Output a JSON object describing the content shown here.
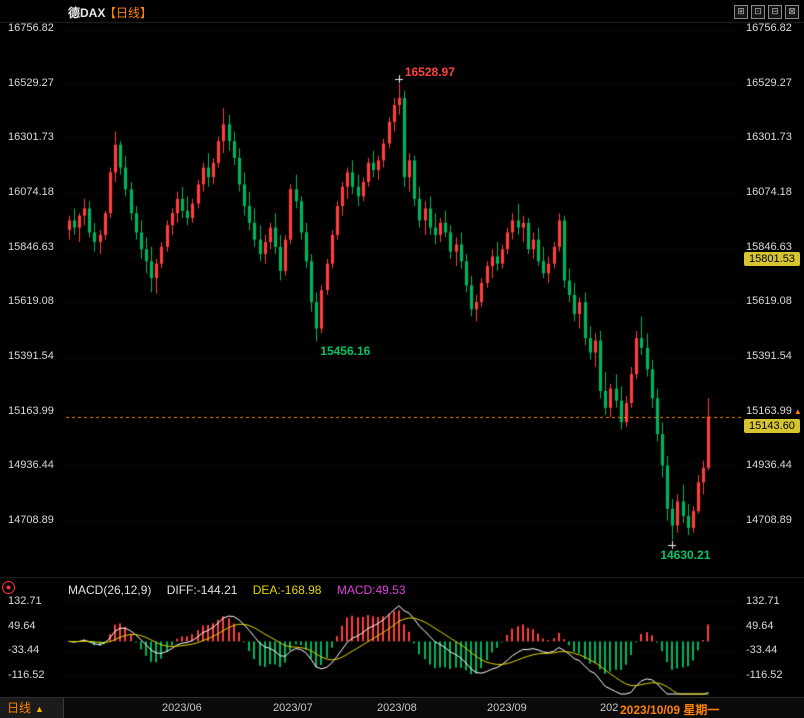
{
  "header": {
    "symbol": "德DAX",
    "period": "【日线】",
    "icons": [
      {
        "name": "grid-icon",
        "glyph": "⊞"
      },
      {
        "name": "restore-icon",
        "glyph": "⊡"
      },
      {
        "name": "minimize-icon",
        "glyph": "⊟"
      },
      {
        "name": "close-icon",
        "glyph": "⊠"
      }
    ]
  },
  "price_axis": {
    "labels": [
      "16756.82",
      "16529.27",
      "16301.73",
      "16074.18",
      "15846.63",
      "15619.08",
      "15391.54",
      "15163.99",
      "14936.44",
      "14708.89"
    ]
  },
  "right_tags": {
    "reference_price": "15801.53",
    "last_price": "15143.60",
    "alert_level_index": 7,
    "arrow": "▲"
  },
  "annotations": {
    "high": "16528.97",
    "low_july": "15456.16",
    "low_october": "14630.21"
  },
  "indicator_pane": {
    "title": "MACD(26,12,9)",
    "diff": "DIFF:-144.21",
    "dea": "DEA:-168.98",
    "macd": "MACD:49.53",
    "axis_labels": [
      "132.71",
      "49.64",
      "-33.44",
      "-116.52"
    ]
  },
  "time_axis": {
    "months": [
      "2023/06",
      "2023/07",
      "2023/08",
      "2023/09"
    ],
    "truncated": "202",
    "current_date": "2023/10/09 星期一",
    "period_label": "日线",
    "period_arrow": "▲"
  },
  "colors": {
    "up": "#ff3e3e",
    "down": "#00b45e",
    "accent": "#ff8000",
    "tag_bg": "#d6c531",
    "diff_line": "#ffffff",
    "dea_line": "#e3d600",
    "grid": "rgba(150,60,60,0.35)"
  },
  "chart_data": {
    "type": "candlestick",
    "symbol": "德DAX",
    "period": "daily",
    "price_range": [
      14708.89,
      16756.82
    ],
    "price_axis_ticks": [
      16756.82,
      16529.27,
      16301.73,
      16074.18,
      15846.63,
      15619.08,
      15391.54,
      15163.99,
      14936.44,
      14708.89
    ],
    "time_labels": [
      "2023/06",
      "2023/07",
      "2023/08",
      "2023/09",
      "2023/10/09"
    ],
    "last_date": "2023/10/09 星期一",
    "key_points": {
      "high": {
        "index": 64,
        "price": 16528.97
      },
      "low_july": {
        "index": 48,
        "price": 15456.16
      },
      "low_october": {
        "index": 117,
        "price": 14630.21
      },
      "last_close": 15143.6,
      "reference_level": 15801.53
    },
    "indicator": {
      "name": "MACD",
      "params": [
        26,
        12,
        9
      ],
      "axis_ticks": [
        132.71,
        49.64,
        -33.44,
        -116.52
      ],
      "last": {
        "diff": -144.21,
        "dea": -168.98,
        "macd": 49.53
      }
    },
    "ohlc": [
      [
        15920,
        15980,
        15880,
        15960
      ],
      [
        15960,
        16010,
        15900,
        15930
      ],
      [
        15930,
        15990,
        15870,
        15980
      ],
      [
        15980,
        16050,
        15940,
        16010
      ],
      [
        16010,
        16040,
        15890,
        15910
      ],
      [
        15910,
        15950,
        15830,
        15870
      ],
      [
        15870,
        15920,
        15820,
        15900
      ],
      [
        15900,
        16000,
        15880,
        15990
      ],
      [
        15990,
        16180,
        15970,
        16160
      ],
      [
        16160,
        16331,
        16120,
        16275
      ],
      [
        16275,
        16290,
        16150,
        16180
      ],
      [
        16180,
        16230,
        16060,
        16090
      ],
      [
        16090,
        16120,
        15960,
        15990
      ],
      [
        15990,
        16020,
        15880,
        15910
      ],
      [
        15910,
        15960,
        15800,
        15840
      ],
      [
        15840,
        15890,
        15740,
        15790
      ],
      [
        15790,
        15850,
        15660,
        15720
      ],
      [
        15720,
        15800,
        15655,
        15780
      ],
      [
        15780,
        15870,
        15760,
        15850
      ],
      [
        15850,
        15960,
        15830,
        15940
      ],
      [
        15940,
        16010,
        15900,
        15990
      ],
      [
        15990,
        16080,
        15950,
        16050
      ],
      [
        16050,
        16100,
        15970,
        16000
      ],
      [
        16000,
        16060,
        15940,
        15970
      ],
      [
        15970,
        16050,
        15950,
        16030
      ],
      [
        16030,
        16130,
        16010,
        16110
      ],
      [
        16110,
        16200,
        16080,
        16180
      ],
      [
        16180,
        16240,
        16100,
        16140
      ],
      [
        16140,
        16220,
        16110,
        16200
      ],
      [
        16200,
        16310,
        16180,
        16290
      ],
      [
        16290,
        16427,
        16240,
        16360
      ],
      [
        16360,
        16400,
        16250,
        16290
      ],
      [
        16290,
        16330,
        16190,
        16220
      ],
      [
        16220,
        16260,
        16080,
        16110
      ],
      [
        16110,
        16160,
        15980,
        16020
      ],
      [
        16020,
        16080,
        15920,
        15950
      ],
      [
        15950,
        16010,
        15850,
        15880
      ],
      [
        15880,
        15940,
        15790,
        15820
      ],
      [
        15820,
        15900,
        15780,
        15870
      ],
      [
        15870,
        15950,
        15840,
        15930
      ],
      [
        15930,
        15990,
        15820,
        15850
      ],
      [
        15850,
        15900,
        15710,
        15750
      ],
      [
        15750,
        15900,
        15730,
        15880
      ],
      [
        15880,
        16110,
        15860,
        16090
      ],
      [
        16090,
        16150,
        16010,
        16040
      ],
      [
        16040,
        16060,
        15880,
        15910
      ],
      [
        15910,
        15950,
        15760,
        15790
      ],
      [
        15790,
        15820,
        15580,
        15620
      ],
      [
        15620,
        15660,
        15456.16,
        15510
      ],
      [
        15510,
        15690,
        15490,
        15670
      ],
      [
        15670,
        15800,
        15650,
        15780
      ],
      [
        15780,
        15920,
        15760,
        15900
      ],
      [
        15900,
        16040,
        15880,
        16020
      ],
      [
        16020,
        16120,
        15980,
        16100
      ],
      [
        16100,
        16180,
        16050,
        16160
      ],
      [
        16160,
        16210,
        16070,
        16100
      ],
      [
        16100,
        16150,
        16020,
        16060
      ],
      [
        16060,
        16140,
        16040,
        16120
      ],
      [
        16120,
        16220,
        16100,
        16200
      ],
      [
        16200,
        16250,
        16140,
        16170
      ],
      [
        16170,
        16230,
        16130,
        16210
      ],
      [
        16210,
        16300,
        16180,
        16280
      ],
      [
        16280,
        16390,
        16260,
        16370
      ],
      [
        16370,
        16470,
        16330,
        16440
      ],
      [
        16440,
        16528.97,
        16400,
        16470
      ],
      [
        16470,
        16500,
        16100,
        16140
      ],
      [
        16140,
        16240,
        16080,
        16210
      ],
      [
        16210,
        16230,
        16020,
        16050
      ],
      [
        16050,
        16100,
        15930,
        15960
      ],
      [
        15960,
        16040,
        15900,
        16010
      ],
      [
        16010,
        16060,
        15900,
        15930
      ],
      [
        15930,
        15990,
        15860,
        15900
      ],
      [
        15900,
        15970,
        15870,
        15950
      ],
      [
        15950,
        16000,
        15890,
        15910
      ],
      [
        15910,
        15940,
        15800,
        15830
      ],
      [
        15830,
        15890,
        15770,
        15860
      ],
      [
        15860,
        15910,
        15760,
        15790
      ],
      [
        15790,
        15820,
        15660,
        15690
      ],
      [
        15690,
        15730,
        15560,
        15590
      ],
      [
        15590,
        15650,
        15540,
        15620
      ],
      [
        15620,
        15720,
        15600,
        15700
      ],
      [
        15700,
        15790,
        15680,
        15770
      ],
      [
        15770,
        15840,
        15720,
        15810
      ],
      [
        15810,
        15870,
        15750,
        15780
      ],
      [
        15780,
        15860,
        15760,
        15840
      ],
      [
        15840,
        15930,
        15820,
        15910
      ],
      [
        15910,
        15990,
        15880,
        15960
      ],
      [
        15960,
        16030,
        15900,
        15930
      ],
      [
        15930,
        15980,
        15870,
        15950
      ],
      [
        15950,
        15970,
        15820,
        15840
      ],
      [
        15840,
        15910,
        15800,
        15880
      ],
      [
        15880,
        15930,
        15770,
        15790
      ],
      [
        15790,
        15850,
        15720,
        15740
      ],
      [
        15740,
        15810,
        15700,
        15780
      ],
      [
        15780,
        15870,
        15760,
        15850
      ],
      [
        15850,
        15990,
        15830,
        15960
      ],
      [
        15960,
        15980,
        15680,
        15710
      ],
      [
        15710,
        15760,
        15620,
        15650
      ],
      [
        15650,
        15700,
        15540,
        15570
      ],
      [
        15570,
        15640,
        15510,
        15620
      ],
      [
        15620,
        15660,
        15440,
        15470
      ],
      [
        15470,
        15520,
        15380,
        15410
      ],
      [
        15410,
        15490,
        15350,
        15460
      ],
      [
        15460,
        15500,
        15220,
        15250
      ],
      [
        15250,
        15330,
        15150,
        15180
      ],
      [
        15180,
        15280,
        15140,
        15260
      ],
      [
        15260,
        15320,
        15180,
        15210
      ],
      [
        15210,
        15270,
        15090,
        15120
      ],
      [
        15120,
        15230,
        15100,
        15200
      ],
      [
        15200,
        15350,
        15180,
        15320
      ],
      [
        15320,
        15500,
        15300,
        15470
      ],
      [
        15470,
        15560,
        15400,
        15430
      ],
      [
        15430,
        15490,
        15310,
        15340
      ],
      [
        15340,
        15380,
        15180,
        15220
      ],
      [
        15220,
        15260,
        15040,
        15070
      ],
      [
        15070,
        15120,
        14890,
        14940
      ],
      [
        14940,
        14980,
        14710,
        14760
      ],
      [
        14760,
        14800,
        14630.21,
        14690
      ],
      [
        14690,
        14820,
        14660,
        14790
      ],
      [
        14790,
        14860,
        14700,
        14730
      ],
      [
        14730,
        14780,
        14650,
        14680
      ],
      [
        14680,
        14770,
        14660,
        14750
      ],
      [
        14750,
        14900,
        14740,
        14870
      ],
      [
        14870,
        14960,
        14820,
        14930
      ],
      [
        14930,
        15220,
        14920,
        15143.6
      ]
    ]
  }
}
